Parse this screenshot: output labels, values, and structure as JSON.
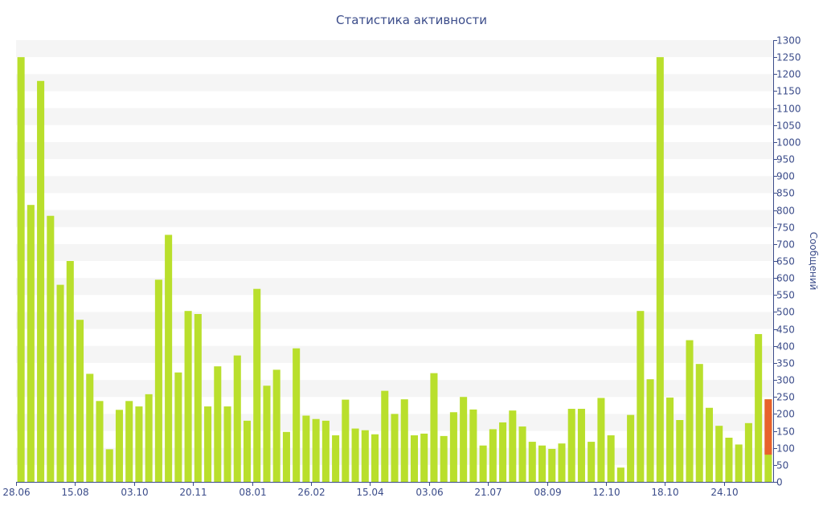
{
  "chart_data": {
    "type": "bar",
    "title": "Статистика активности",
    "xlabel": "",
    "ylabel": "Сообщений",
    "ylim": [
      0,
      1300
    ],
    "y_ticks": [
      0,
      50,
      100,
      150,
      200,
      250,
      300,
      350,
      400,
      450,
      500,
      550,
      600,
      650,
      700,
      750,
      800,
      850,
      900,
      950,
      1000,
      1050,
      1100,
      1150,
      1200,
      1250,
      1300
    ],
    "x_tick_labels": [
      "28.06",
      "15.08",
      "03.10",
      "20.11",
      "08.01",
      "26.02",
      "15.04",
      "03.06",
      "21.07",
      "08.09",
      "12.10",
      "18.10",
      "24.10"
    ],
    "x_tick_bar_index": [
      0,
      6,
      12,
      18,
      24,
      30,
      36,
      42,
      48,
      54,
      60,
      66,
      72
    ],
    "grid": true,
    "grid_style": "alternating horizontal bands",
    "y_axis_position": "right",
    "colors": {
      "bar": "#b9df2c",
      "highlight": "#e8622c",
      "band": "#f5f5f5",
      "axis": "#3b4c8a",
      "text": "#3b4c8a"
    },
    "series": [
      {
        "values": [
          1250,
          815,
          1180,
          783,
          580,
          650,
          477,
          318,
          238,
          96,
          212,
          238,
          222,
          258,
          595,
          727,
          322,
          503,
          494,
          222,
          340,
          222,
          372,
          180,
          568,
          283,
          330,
          147,
          393,
          195,
          185,
          180,
          137,
          242,
          157,
          152,
          140,
          268,
          200,
          243,
          137,
          142,
          320,
          135,
          205,
          250,
          213,
          107,
          155,
          175,
          210,
          163,
          118,
          107,
          97,
          113,
          215,
          215,
          118,
          247,
          137,
          42,
          197,
          503,
          302,
          1250,
          248,
          182,
          417,
          347,
          218,
          165,
          130,
          110,
          173,
          435,
          243
        ]
      }
    ],
    "highlight": {
      "bar_index": 76,
      "low": 80,
      "high": 243
    }
  }
}
